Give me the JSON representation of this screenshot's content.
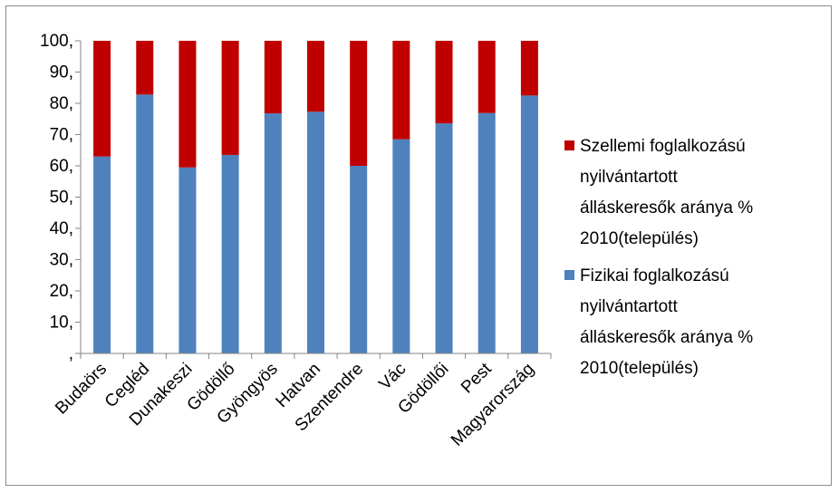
{
  "chart_data": {
    "type": "bar",
    "stacked": true,
    "categories": [
      "Budaörs",
      "Cegléd",
      "Dunakeszi",
      "Gödöllő",
      "Gyöngyös",
      "Hatvan",
      "Szentendre",
      "Vác",
      "Gödöllői",
      "Pest",
      "Magyarország"
    ],
    "series": [
      {
        "name": "Fizikai foglalkozású nyilvántartott álláskeresők aránya % 2010(település)",
        "color": "#4f81bd",
        "values": [
          63,
          82.8,
          59.5,
          63.5,
          76.8,
          77.3,
          60,
          68.5,
          73.6,
          76.9,
          82.5
        ]
      },
      {
        "name": "Szellemi foglalkozású nyilvántartott álláskeresők aránya % 2010(település)",
        "color": "#c00000",
        "values": [
          37,
          17.2,
          40.5,
          36.5,
          23.2,
          22.7,
          40,
          31.5,
          26.4,
          23.1,
          17.5
        ]
      }
    ],
    "ylim": [
      0,
      100
    ],
    "yticks": [
      0,
      10,
      20,
      30,
      40,
      50,
      60,
      70,
      80,
      90,
      100
    ],
    "ytick_labels": [
      ",",
      "10,",
      "20,",
      "30,",
      "40,",
      "50,",
      "60,",
      "70,",
      "80,",
      "90,",
      "100,"
    ],
    "grid": false,
    "legend": {
      "position": "right",
      "entries": [
        {
          "series": 1,
          "lines": [
            "Szellemi foglalkozású",
            "nyilvántartott",
            "álláskeresők aránya %",
            "2010(település)"
          ]
        },
        {
          "series": 0,
          "lines": [
            "Fizikai foglalkozású",
            "nyilvántartott",
            "álláskeresők aránya %",
            "2010(település)"
          ]
        }
      ]
    }
  }
}
